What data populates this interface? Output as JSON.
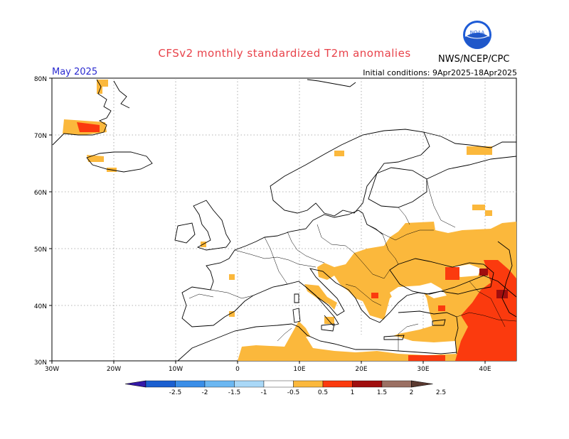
{
  "header": {
    "title": "CFSv2 monthly standardized T2m anomalies",
    "month": "May 2025",
    "initial_conditions": "Initial conditions: 9Apr2025-18Apr2025",
    "agency": "NWS/NCEP/CPC",
    "logo_text": "NOAA"
  },
  "map": {
    "lon_range": [
      -30,
      45
    ],
    "lat_range": [
      30,
      80
    ],
    "lat_ticks": [
      "30N",
      "40N",
      "50N",
      "60N",
      "70N",
      "80N"
    ],
    "lon_ticks": [
      "30W",
      "20W",
      "10W",
      "0",
      "10E",
      "20E",
      "30E",
      "40E"
    ],
    "grid": "dotted"
  },
  "colorbar": {
    "labels": [
      "-2.5",
      "-2",
      "-1.5",
      "-1",
      "-0.5",
      "0.5",
      "1",
      "1.5",
      "2",
      "2.5"
    ],
    "colors": [
      "#3419a8",
      "#1a5fd0",
      "#3a8ee8",
      "#6bb7f2",
      "#a9d8f7",
      "#ffffff",
      "#fbb83c",
      "#fb3a0e",
      "#a00e0e",
      "#9b7063",
      "#5b3a30"
    ]
  },
  "colors": {
    "anomaly_0_5_to_1": "#fbb83c",
    "anomaly_1_to_1_5": "#fb3a0e",
    "anomaly_1_5_to_2": "#a00e0e",
    "title": "#e8424a",
    "month_label": "#2a2ad0"
  }
}
